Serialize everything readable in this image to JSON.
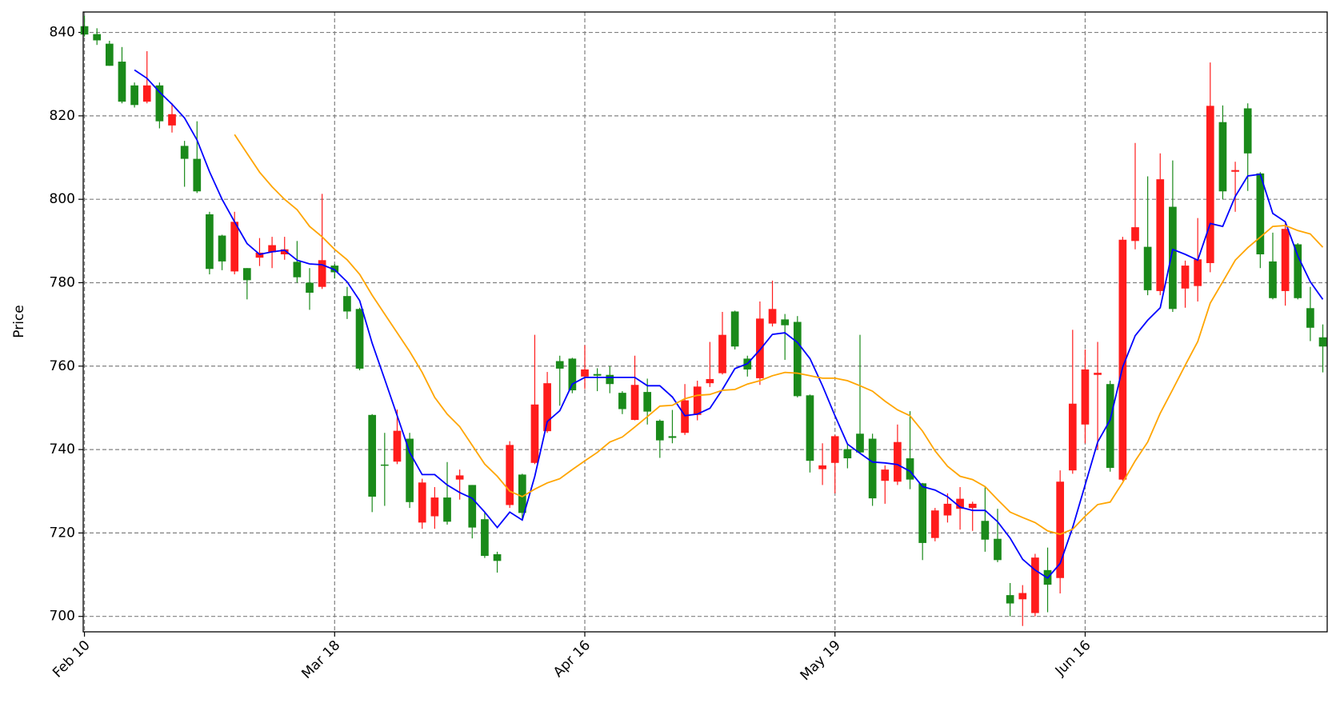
{
  "chart_data": {
    "type": "candlestick",
    "y_label": "Price",
    "categories": [
      "Feb 10",
      null,
      null,
      null,
      null,
      null,
      null,
      null,
      null,
      null,
      null,
      null,
      null,
      null,
      null,
      null,
      null,
      null,
      null,
      null,
      "Mar 18",
      null,
      null,
      null,
      null,
      null,
      null,
      null,
      null,
      null,
      null,
      null,
      null,
      null,
      null,
      null,
      null,
      null,
      null,
      null,
      "Apr 16",
      null,
      null,
      null,
      null,
      null,
      null,
      null,
      null,
      null,
      null,
      null,
      null,
      null,
      null,
      null,
      null,
      null,
      null,
      null,
      "May 19",
      null,
      null,
      null,
      null,
      null,
      null,
      null,
      null,
      null,
      null,
      null,
      null,
      null,
      null,
      null,
      null,
      null,
      null,
      null,
      "Jun 16",
      null,
      null,
      null,
      null,
      null,
      null,
      null,
      null,
      null,
      null,
      null,
      null,
      null,
      null,
      null,
      null,
      null,
      null,
      null
    ],
    "open": [
      841.5,
      839.6,
      837.3,
      833,
      827.3,
      823.4,
      827.3,
      817.7,
      812.8,
      809.7,
      796.4,
      791.3,
      782.7,
      783.5,
      786,
      787.3,
      786.8,
      785,
      780,
      779,
      784.1,
      776.8,
      773.7,
      748.3,
      736.4,
      737.1,
      742.6,
      722.5,
      724,
      728.5,
      732.8,
      731.5,
      723.3,
      714.9,
      726.7,
      734,
      736.8,
      744.4,
      761.2,
      761.8,
      757.5,
      758.1,
      757.9,
      753.6,
      747.1,
      753.8,
      746.9,
      743.2,
      744,
      748.3,
      755.9,
      758.3,
      773.1,
      761.8,
      757.1,
      770.2,
      771.2,
      770.6,
      753,
      735.3,
      736.8,
      740.1,
      743.8,
      742.6,
      732.5,
      732.3,
      737.9,
      731.9,
      718.8,
      724.2,
      725.8,
      726,
      722.9,
      718.6,
      705.1,
      704.1,
      700.8,
      711.1,
      709.2,
      735,
      746,
      757.9,
      755.7,
      732.8,
      790,
      788.6,
      778,
      798.2,
      778.6,
      779.2,
      784.7,
      818.5,
      806.6,
      821.8,
      806.2,
      785.1,
      778,
      789.2,
      773.9,
      766.9
    ],
    "high": [
      844,
      841,
      838,
      836.5,
      828,
      835.5,
      828,
      823,
      814,
      818.7,
      797,
      791.5,
      797,
      783.5,
      790.7,
      791,
      791,
      790,
      783.5,
      801.3,
      784.5,
      779,
      774,
      748.5,
      744,
      749.6,
      744,
      733,
      731,
      737,
      735.2,
      731.5,
      725,
      715.5,
      742,
      734.2,
      767.5,
      758.6,
      762.5,
      762,
      765,
      759.5,
      760,
      754,
      762.5,
      757,
      747.2,
      749.5,
      755.7,
      756.5,
      765.8,
      773,
      773.3,
      762.5,
      775.5,
      780.5,
      772.5,
      772,
      753.2,
      741.5,
      743.5,
      741.5,
      767.5,
      743.8,
      736.2,
      746,
      749.2,
      732,
      726,
      729.5,
      731,
      727.5,
      731,
      725.8,
      708,
      707.5,
      715,
      716.5,
      735,
      768.7,
      764,
      765.8,
      756.5,
      791,
      813.5,
      805.5,
      811,
      809.3,
      785.3,
      795.5,
      832.8,
      822.5,
      809,
      823,
      806.5,
      792,
      794.5,
      789.5,
      779,
      770
    ],
    "low": [
      839,
      837,
      832,
      823,
      822,
      823,
      817,
      816,
      803,
      801.5,
      782,
      783,
      782,
      776,
      784,
      783.5,
      785.5,
      780,
      773.5,
      778.5,
      781,
      771.3,
      759,
      725,
      726.5,
      736.5,
      726,
      721,
      721,
      722,
      728,
      718.7,
      714,
      710.5,
      726,
      723.5,
      736.5,
      744,
      750.5,
      753.5,
      754.5,
      754,
      753.5,
      748.5,
      747,
      746,
      738,
      741.5,
      743.5,
      747,
      755,
      758,
      764,
      757.5,
      755.5,
      769.5,
      761.5,
      752.5,
      734.5,
      731.5,
      729.5,
      735.5,
      739,
      726.5,
      727,
      731.5,
      730.5,
      713.5,
      718,
      722.5,
      720.8,
      720.5,
      715.5,
      713,
      700,
      697.7,
      700,
      701,
      705.5,
      734.2,
      741.5,
      740,
      734.7,
      732.5,
      788,
      777,
      777,
      773,
      774,
      775.5,
      782.5,
      800,
      797,
      802,
      783.5,
      776,
      774.5,
      776,
      766,
      758.5
    ],
    "close": [
      839.5,
      838.1,
      832,
      823.4,
      822.6,
      827.3,
      818.7,
      820.4,
      809.7,
      801.9,
      783.3,
      785.1,
      794.6,
      780.6,
      787.2,
      789,
      788,
      781.3,
      777.6,
      785.4,
      782.5,
      773.1,
      759.4,
      728.7,
      736.2,
      744.5,
      727.4,
      732.1,
      728.5,
      722.7,
      733.8,
      721.3,
      714.5,
      713.3,
      741.1,
      724.8,
      750.8,
      755.9,
      759.4,
      754.2,
      759.2,
      757.7,
      755.7,
      749.7,
      755.5,
      749.1,
      742.2,
      742.8,
      751.8,
      755.1,
      756.9,
      767.5,
      764.7,
      759.2,
      771.4,
      773.7,
      769.8,
      752.8,
      737.3,
      736.2,
      743.2,
      737.9,
      739.3,
      728.3,
      735.2,
      741.8,
      732.8,
      717.6,
      725.4,
      727,
      728.2,
      727,
      718.4,
      713.5,
      703.1,
      705.6,
      714.1,
      707.6,
      732.3,
      751,
      759.2,
      758.4,
      735.6,
      790.3,
      793.3,
      778.2,
      804.8,
      773.7,
      784.1,
      785.6,
      822.4,
      801.9,
      807,
      811,
      786.8,
      776.3,
      792.9,
      776.3,
      769.2,
      764.7
    ],
    "up_color": "#ff1c1c",
    "down_color": "#1a8a1a",
    "series": [
      {
        "color": "#0000ff",
        "values": [
          null,
          null,
          null,
          null,
          831,
          829,
          825.7,
          822.8,
          819.5,
          814.2,
          806.6,
          800,
          794.6,
          789.4,
          786.8,
          787.4,
          787.8,
          785.4,
          784.5,
          784.3,
          783.1,
          780.2,
          775.7,
          765.5,
          756.9,
          748.1,
          739.3,
          734,
          734,
          731.5,
          729.7,
          728.3,
          725,
          721.3,
          725,
          723.1,
          733.6,
          746.7,
          749.3,
          755.7,
          757.3,
          757.3,
          757.3,
          757.3,
          757.3,
          755.3,
          755.3,
          752.6,
          748.1,
          748.5,
          749.9,
          754.4,
          759.4,
          760.6,
          763.9,
          767.6,
          768,
          765.7,
          761.8,
          755.3,
          748.1,
          741.3,
          739.1,
          737,
          736.8,
          736.4,
          734.8,
          731.1,
          730.3,
          728.7,
          726.2,
          725.4,
          725.4,
          722.7,
          718.8,
          713.7,
          711.1,
          709.2,
          712.7,
          721.3,
          731.5,
          741.8,
          747.1,
          759.8,
          767.3,
          771,
          774,
          788,
          786.8,
          785.4,
          794.2,
          793.5,
          800.7,
          805.6,
          806,
          796.6,
          794.6,
          786.4,
          780.2,
          776
        ]
      },
      {
        "color": "#ffa500",
        "values": [
          null,
          null,
          null,
          null,
          null,
          null,
          null,
          null,
          null,
          null,
          null,
          null,
          815.5,
          811,
          806.5,
          803,
          800,
          797.5,
          793.5,
          791,
          788,
          785.5,
          782,
          777,
          772.5,
          768,
          763.5,
          758.5,
          752.5,
          748.5,
          745.5,
          741,
          736.5,
          733.6,
          730,
          728.7,
          730.5,
          732,
          733,
          735.2,
          737.3,
          739.3,
          741.8,
          743,
          745.4,
          747.9,
          750.4,
          750.6,
          752.2,
          753,
          753.2,
          754.2,
          754.4,
          755.7,
          756.5,
          757.7,
          758.5,
          758.3,
          757.7,
          757.1,
          757.1,
          756.5,
          755.3,
          754,
          751.6,
          749.5,
          748.1,
          744.4,
          739.7,
          736,
          733.6,
          732.8,
          731.1,
          728,
          725,
          723.7,
          722.5,
          720.5,
          719.7,
          720.9,
          724,
          726.8,
          727.4,
          732.1,
          737.3,
          741.8,
          748.7,
          754.4,
          760.2,
          765.9,
          775.1,
          780.2,
          785.4,
          788.4,
          790.9,
          793.5,
          793.7,
          792.5,
          791.7,
          788.5
        ]
      }
    ],
    "xlim": [
      -0.1,
      99.35
    ],
    "ylim": [
      696.3,
      844.9
    ],
    "yticks": [
      700,
      720,
      740,
      760,
      780,
      800,
      820,
      840
    ],
    "grid": true
  }
}
